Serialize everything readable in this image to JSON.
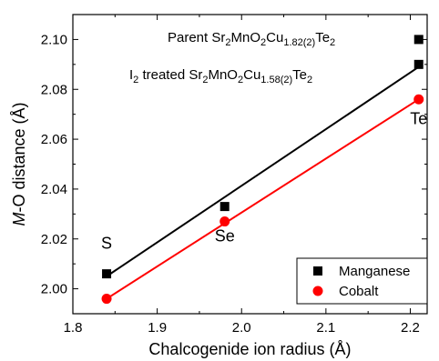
{
  "chart_data": {
    "type": "scatter",
    "xlabel": "Chalcogenide ion radius (Å)",
    "ylabel": "M-O distance (Å)",
    "xlim": [
      1.8,
      2.22
    ],
    "ylim": [
      1.99,
      2.11
    ],
    "xticks": [
      "1.8",
      "1.9",
      "2.0",
      "2.1",
      "2.2"
    ],
    "yticks": [
      "2.00",
      "2.02",
      "2.04",
      "2.06",
      "2.08",
      "2.10"
    ],
    "grid": false,
    "legend_position": "bottom-right",
    "series": [
      {
        "name": "Manganese",
        "marker": "square",
        "color": "#000000",
        "x": [
          1.84,
          1.98,
          2.21,
          2.21
        ],
        "y": [
          2.006,
          2.033,
          2.09,
          2.1
        ],
        "fit": {
          "x": [
            1.84,
            2.21
          ],
          "y": [
            2.005,
            2.089
          ]
        }
      },
      {
        "name": "Cobalt",
        "marker": "circle",
        "color": "#ff0000",
        "x": [
          1.84,
          1.98,
          2.21
        ],
        "y": [
          1.996,
          2.027,
          2.076
        ],
        "fit": {
          "x": [
            1.84,
            2.21
          ],
          "y": [
            1.996,
            2.076
          ]
        }
      }
    ],
    "point_labels": [
      {
        "text": "S",
        "x": 1.84
      },
      {
        "text": "Se",
        "x": 1.98
      },
      {
        "text": "Te",
        "x": 2.21
      }
    ],
    "annotations": [
      {
        "id": "parent",
        "x": 2.21,
        "y": 2.1,
        "parts": [
          {
            "t": "Parent Sr",
            "s": "n"
          },
          {
            "t": "2",
            "s": "sub"
          },
          {
            "t": "MnO",
            "s": "n"
          },
          {
            "t": "2",
            "s": "sub"
          },
          {
            "t": "Cu",
            "s": "n"
          },
          {
            "t": "1.82(2)",
            "s": "sub"
          },
          {
            "t": "Te",
            "s": "n"
          },
          {
            "t": "2",
            "s": "sub"
          }
        ]
      },
      {
        "id": "treated",
        "x": 2.21,
        "y": 2.09,
        "parts": [
          {
            "t": "I",
            "s": "n"
          },
          {
            "t": "2",
            "s": "sub"
          },
          {
            "t": " treated Sr",
            "s": "n"
          },
          {
            "t": "2",
            "s": "sub"
          },
          {
            "t": "MnO",
            "s": "n"
          },
          {
            "t": "2",
            "s": "sub"
          },
          {
            "t": "Cu",
            "s": "n"
          },
          {
            "t": "1.58(2)",
            "s": "sub"
          },
          {
            "t": "Te",
            "s": "n"
          },
          {
            "t": "2",
            "s": "sub"
          }
        ]
      }
    ]
  }
}
